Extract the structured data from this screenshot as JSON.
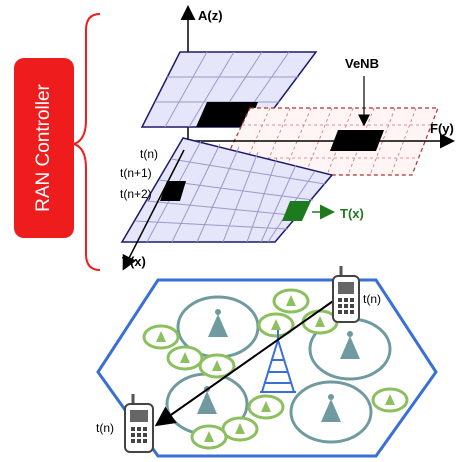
{
  "controller": {
    "label": "RAN Controller"
  },
  "axes": {
    "a_axis": "A(z)",
    "f_axis": "F(y)",
    "t_axis": "T(x)"
  },
  "labels": {
    "venb": "VeNB",
    "t_n": "t(n)",
    "t_n1": "t(n+1)",
    "t_n2": "t(n+2)",
    "tx_marker": "T(x)",
    "ue_top": "t(n)",
    "ue_bottom": "t(n)"
  },
  "colors": {
    "accent_red": "#ee1c1c",
    "grid_fill": "#e6e6fa",
    "grid_border": "#1a1a6e",
    "dashed_grid": "#b03030",
    "highlight_green": "#1e7a1e",
    "hex_border": "#3a6fd8",
    "macro_cell": "#6f9aa0",
    "small_cell": "#8cbf5e",
    "tower": "#3b6fd8"
  },
  "icons": [
    "bracket-icon",
    "phone-icon",
    "antenna-icon",
    "tower-icon",
    "arrow-icon"
  ]
}
